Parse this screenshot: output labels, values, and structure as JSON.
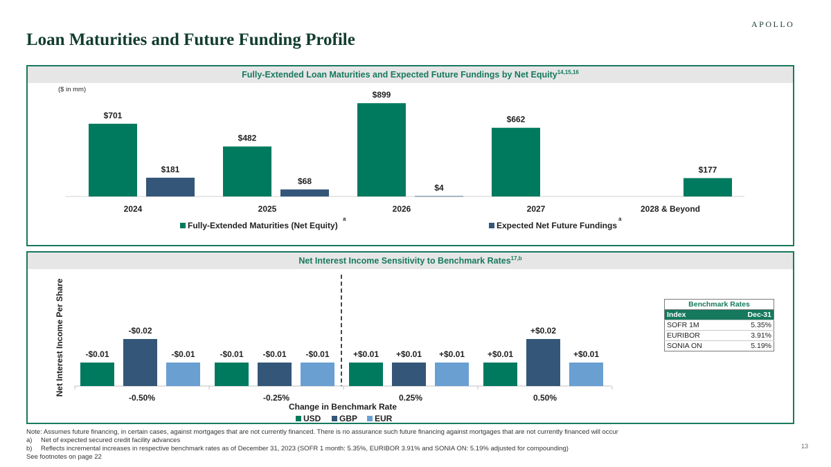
{
  "brand": "APOLLO",
  "page_title": "Loan Maturities and Future Funding Profile",
  "page_number": "13",
  "colors": {
    "green": "#007A5E",
    "navy": "#345678",
    "light_blue": "#6A9FD2",
    "accent": "#16795D"
  },
  "top_chart": {
    "title": "Fully-Extended Loan Maturities and Expected Future Fundings by Net Equity",
    "title_sup": "14,15,16",
    "unit_note": "($ in mm)",
    "legend_marker": "a"
  },
  "bottom_chart": {
    "title": "Net Interest Income Sensitivity to Benchmark Rates",
    "title_sup": "17,b"
  },
  "benchmark_table": {
    "caption": "Benchmark Rates",
    "headers": [
      "Index",
      "Dec-31"
    ],
    "rows": [
      {
        "index": "SOFR 1M",
        "value": "5.35%"
      },
      {
        "index": "EURIBOR",
        "value": "3.91%"
      },
      {
        "index": "SONIA ON",
        "value": "5.19%"
      }
    ]
  },
  "notes": {
    "note": "Note: Assumes future financing, in certain cases, against mortgages that are not currently financed. There is no assurance such future financing against mortgages that are not currently financed will occur",
    "items": [
      {
        "marker": "a)",
        "text": "Net of expected secured credit facility advances"
      },
      {
        "marker": "b)",
        "text": "Reflects incremental increases in respective benchmark rates as of December 31, 2023 (SOFR 1 month: 5.35%, EURIBOR 3.91% and SONIA ON: 5.19% adjusted for compounding)"
      }
    ],
    "see_also": "See footnotes on page 22"
  },
  "chart_data": [
    {
      "type": "bar",
      "title": "Fully-Extended Loan Maturities and Expected Future Fundings by Net Equity",
      "unit": "$ in mm",
      "categories": [
        "2024",
        "2025",
        "2026",
        "2027",
        "2028 & Beyond"
      ],
      "series": [
        {
          "name": "Fully-Extended Maturities (Net Equity)",
          "color": "#007A5E",
          "values": [
            701,
            482,
            899,
            662,
            177
          ],
          "labels": [
            "$701",
            "$482",
            "$899",
            "$662",
            "$177"
          ]
        },
        {
          "name": "Expected Net Future Fundings",
          "color": "#345678",
          "values": [
            181,
            68,
            4,
            null,
            null
          ],
          "labels": [
            "$181",
            "$68",
            "$4",
            null,
            null
          ]
        }
      ],
      "layout_note": "2028 & Beyond maturities bar is drawn in the second (fundings) slot",
      "ylim": [
        0,
        1000
      ],
      "legend_position": "bottom"
    },
    {
      "type": "bar",
      "title": "Net Interest Income Sensitivity to Benchmark Rates",
      "xlabel": "Change in Benchmark Rate",
      "ylabel": "Net Interest Income Per Share",
      "categories": [
        "-0.50%",
        "-0.25%",
        "0.25%",
        "0.50%"
      ],
      "series": [
        {
          "name": "USD",
          "color": "#007A5E",
          "values": [
            -0.01,
            -0.01,
            0.01,
            0.01
          ],
          "labels": [
            "-$0.01",
            "-$0.01",
            "+$0.01",
            "+$0.01"
          ]
        },
        {
          "name": "GBP",
          "color": "#345678",
          "values": [
            -0.02,
            -0.01,
            0.01,
            0.02
          ],
          "labels": [
            "-$0.02",
            "-$0.01",
            "+$0.01",
            "+$0.02"
          ]
        },
        {
          "name": "EUR",
          "color": "#6A9FD2",
          "values": [
            -0.01,
            -0.01,
            0.01,
            0.01
          ],
          "labels": [
            "-$0.01",
            "-$0.01",
            "+$0.01",
            "+$0.01"
          ]
        }
      ],
      "legend_position": "bottom"
    }
  ]
}
